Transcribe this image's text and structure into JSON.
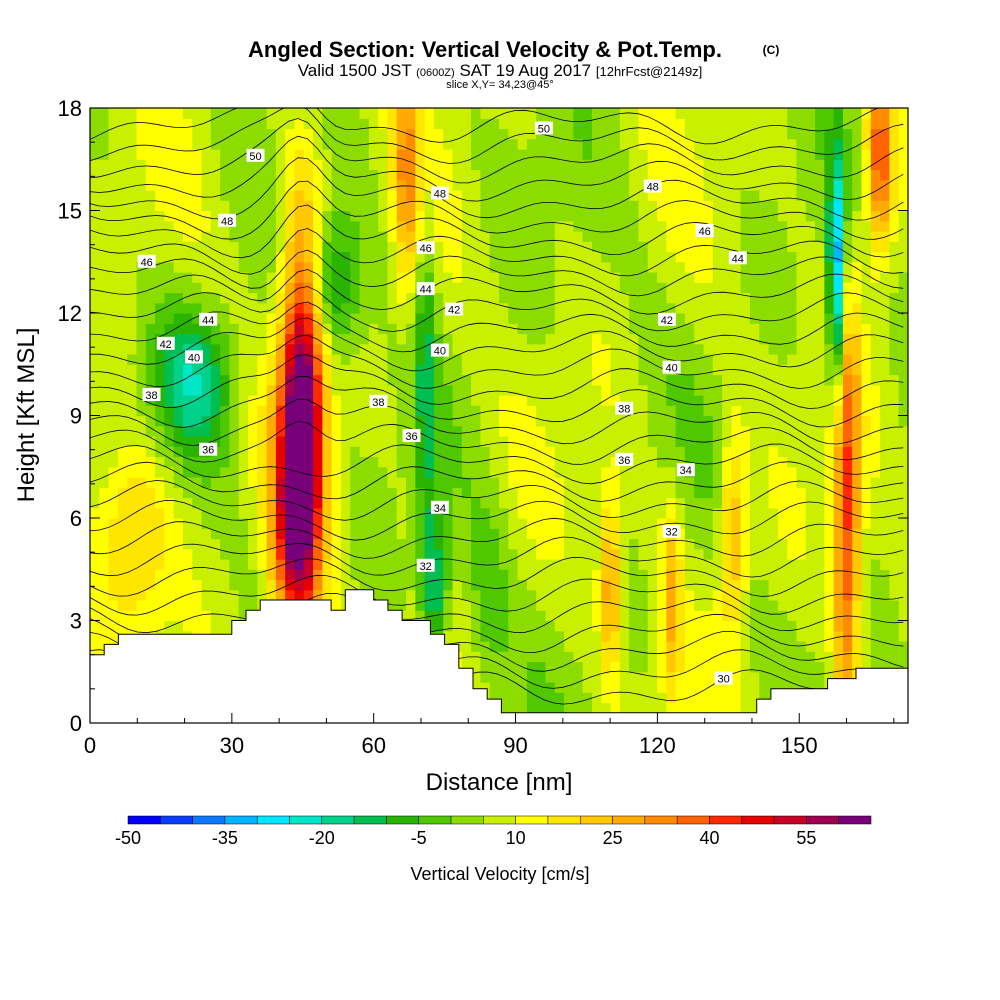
{
  "header": {
    "title": "Angled Section: Vertical Velocity & Pot.Temp.",
    "title_mark": "(C)",
    "valid_prefix": "Valid 1500 JST",
    "valid_utc": "(0600Z)",
    "valid_date": "SAT 19 Aug 2017",
    "forecast": "[12hrFcst@2149z]",
    "slice": "slice X,Y= 34,23@45°"
  },
  "chart_data": {
    "type": "heatmap",
    "xlabel": "Distance [nm]",
    "ylabel": "Height [Kft MSL]",
    "xlim": [
      0,
      173
    ],
    "ylim": [
      0,
      18
    ],
    "x_ticks": [
      0,
      30,
      60,
      90,
      120,
      150
    ],
    "x_tick_labels": [
      "0",
      "30",
      "60",
      "90",
      "120",
      "150"
    ],
    "y_ticks": [
      0,
      3,
      6,
      9,
      12,
      15,
      18
    ],
    "y_tick_labels": [
      "0",
      "3",
      "6",
      "9",
      "12",
      "15",
      "18"
    ],
    "colorbar": {
      "label": "Vertical Velocity [cm/s]",
      "min": -50,
      "max": 65,
      "step": 5,
      "tick_values": [
        -50,
        -35,
        -20,
        -5,
        10,
        25,
        40,
        55
      ],
      "tick_labels": [
        "-50",
        "-35",
        "-20",
        "-5",
        "10",
        "25",
        "40",
        "55"
      ],
      "colors": [
        "#0000ff",
        "#0a3cff",
        "#0a78ff",
        "#00b4ff",
        "#00e6ff",
        "#00e6c8",
        "#00d28c",
        "#00be50",
        "#28b400",
        "#50c800",
        "#8cdc00",
        "#c8f000",
        "#ffff00",
        "#ffe600",
        "#ffc800",
        "#ffaa00",
        "#ff8c00",
        "#ff6400",
        "#ff2800",
        "#e60000",
        "#c80028",
        "#a00050",
        "#780078"
      ]
    },
    "terrain_profile": {
      "x": [
        0,
        3,
        6,
        9,
        12,
        15,
        18,
        21,
        24,
        27,
        30,
        33,
        36,
        39,
        42,
        45,
        48,
        51,
        54,
        57,
        60,
        63,
        66,
        69,
        72,
        75,
        78,
        81,
        84,
        87,
        90,
        93,
        96,
        99,
        102,
        105,
        108,
        111,
        114,
        117,
        120,
        123,
        126,
        129,
        132,
        135,
        138,
        141,
        144,
        147,
        150,
        153,
        156,
        159,
        162,
        165,
        168,
        171,
        173
      ],
      "height_kft": [
        2.0,
        2.3,
        2.6,
        2.6,
        2.6,
        2.6,
        2.6,
        2.6,
        2.6,
        2.6,
        3.0,
        3.3,
        3.6,
        3.6,
        3.6,
        3.6,
        3.6,
        3.3,
        3.9,
        3.9,
        3.6,
        3.3,
        3.0,
        3.0,
        2.6,
        2.3,
        1.6,
        1.0,
        0.7,
        0.3,
        0.3,
        0.3,
        0.3,
        0.3,
        0.3,
        0.3,
        0.3,
        0.3,
        0.3,
        0.3,
        0.3,
        0.3,
        0.3,
        0.3,
        0.3,
        0.3,
        0.3,
        0.7,
        1.0,
        1.0,
        1.0,
        1.0,
        1.3,
        1.3,
        1.6,
        1.6,
        1.6,
        1.6,
        1.6
      ]
    },
    "vertical_velocity_features": [
      {
        "x": 45,
        "z": 9.8,
        "w": 60,
        "sx": 3.2,
        "sz": 3.8
      },
      {
        "x": 43,
        "z": 5.5,
        "w": 35,
        "sx": 3.5,
        "sz": 2.5
      },
      {
        "x": 158,
        "z": 13.0,
        "w": -45,
        "sx": 1.3,
        "sz": 2.5
      },
      {
        "x": 160,
        "z": 6.0,
        "w": 35,
        "sx": 2.0,
        "sz": 5.0
      },
      {
        "x": 167,
        "z": 16.5,
        "w": 35,
        "sx": 2.0,
        "sz": 2.0
      },
      {
        "x": 22,
        "z": 10.0,
        "w": -22,
        "sx": 6.0,
        "sz": 1.5
      },
      {
        "x": 50,
        "z": 12.8,
        "w": -22,
        "sx": 5.0,
        "sz": 1.5
      },
      {
        "x": 73,
        "z": 4.0,
        "w": -22,
        "sx": 2.0,
        "sz": 1.5
      },
      {
        "x": 71,
        "z": 10.0,
        "w": -15,
        "sx": 1.5,
        "sz": 4.0
      },
      {
        "x": 67,
        "z": 16.0,
        "w": 22,
        "sx": 2.0,
        "sz": 2.5
      },
      {
        "x": 110,
        "z": 4.0,
        "w": 25,
        "sx": 1.6,
        "sz": 1.8
      },
      {
        "x": 136,
        "z": 5.5,
        "w": 22,
        "sx": 2.0,
        "sz": 2.0
      },
      {
        "x": 123,
        "z": 3.5,
        "w": 20,
        "sx": 1.5,
        "sz": 2.0
      },
      {
        "x": 9,
        "z": 5.5,
        "w": 18,
        "sx": 6.0,
        "sz": 2.0
      },
      {
        "x": 84,
        "z": 3.5,
        "w": -8,
        "sx": 3.0,
        "sz": 2.0
      }
    ],
    "theta_contours": [
      {
        "label": "30",
        "x": 134,
        "z": 1.3
      },
      {
        "label": "32",
        "x": 71,
        "z": 4.6
      },
      {
        "label": "32",
        "x": 123,
        "z": 5.6
      },
      {
        "label": "34",
        "x": 74,
        "z": 6.3
      },
      {
        "label": "34",
        "x": 126,
        "z": 7.4
      },
      {
        "label": "36",
        "x": 25,
        "z": 8.0
      },
      {
        "label": "36",
        "x": 68,
        "z": 8.4
      },
      {
        "label": "36",
        "x": 113,
        "z": 7.7
      },
      {
        "label": "38",
        "x": 13,
        "z": 9.6
      },
      {
        "label": "38",
        "x": 61,
        "z": 9.4
      },
      {
        "label": "38",
        "x": 113,
        "z": 9.2
      },
      {
        "label": "40",
        "x": 22,
        "z": 10.7
      },
      {
        "label": "40",
        "x": 74,
        "z": 10.9
      },
      {
        "label": "40",
        "x": 123,
        "z": 10.4
      },
      {
        "label": "42",
        "x": 16,
        "z": 11.1
      },
      {
        "label": "42",
        "x": 77,
        "z": 12.1
      },
      {
        "label": "42",
        "x": 122,
        "z": 11.8
      },
      {
        "label": "44",
        "x": 25,
        "z": 11.8
      },
      {
        "label": "44",
        "x": 71,
        "z": 12.7
      },
      {
        "label": "44",
        "x": 137,
        "z": 13.6
      },
      {
        "label": "46",
        "x": 12,
        "z": 13.5
      },
      {
        "label": "46",
        "x": 71,
        "z": 13.9
      },
      {
        "label": "46",
        "x": 130,
        "z": 14.4
      },
      {
        "label": "48",
        "x": 29,
        "z": 14.7
      },
      {
        "label": "48",
        "x": 74,
        "z": 15.5
      },
      {
        "label": "48",
        "x": 119,
        "z": 15.7
      },
      {
        "label": "50",
        "x": 35,
        "z": 16.6
      },
      {
        "label": "50",
        "x": 96,
        "z": 17.4
      }
    ]
  }
}
